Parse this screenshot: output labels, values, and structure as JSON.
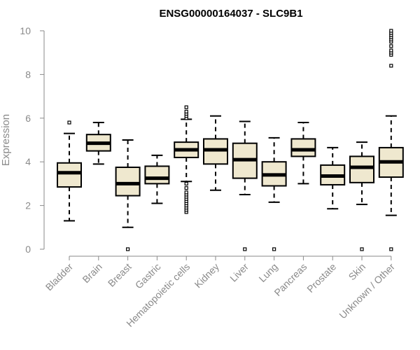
{
  "chart_data": {
    "type": "box",
    "title": "ENSG00000164037 - SLC9B1",
    "xlabel": "",
    "ylabel": "Expression",
    "ylim": [
      0,
      10
    ],
    "yticks": [
      0,
      2,
      4,
      6,
      8,
      10
    ],
    "grid": false,
    "box_color": "#efe8cf",
    "categories": [
      "Bladder",
      "Brain",
      "Breast",
      "Gastric",
      "Hematopoietic cells",
      "Kidney",
      "Liver",
      "Lung",
      "Pancreas",
      "Prostate",
      "Skin",
      "Unknown / Other"
    ],
    "series": [
      {
        "values": [
          {
            "whisker_low": 1.3,
            "q1": 2.85,
            "median": 3.5,
            "q3": 3.95,
            "whisker_high": 5.3,
            "outliers": [
              5.8
            ]
          },
          {
            "whisker_low": 3.9,
            "q1": 4.5,
            "median": 4.85,
            "q3": 5.25,
            "whisker_high": 5.8,
            "outliers": []
          },
          {
            "whisker_low": 1.0,
            "q1": 2.45,
            "median": 3.0,
            "q3": 3.75,
            "whisker_high": 5.0,
            "outliers": [
              0.0
            ]
          },
          {
            "whisker_low": 2.1,
            "q1": 3.0,
            "median": 3.25,
            "q3": 3.8,
            "whisker_high": 4.3,
            "outliers": []
          },
          {
            "whisker_low": 3.1,
            "q1": 4.2,
            "median": 4.55,
            "q3": 4.9,
            "whisker_high": 5.95,
            "outliers": [
              1.7,
              1.8,
              1.9,
              2.0,
              2.1,
              2.2,
              2.3,
              2.4,
              2.5,
              2.6,
              2.8,
              3.0,
              6.0,
              6.1,
              6.2,
              6.3,
              6.5
            ]
          },
          {
            "whisker_low": 2.7,
            "q1": 3.9,
            "median": 4.55,
            "q3": 5.05,
            "whisker_high": 6.1,
            "outliers": []
          },
          {
            "whisker_low": 2.5,
            "q1": 3.25,
            "median": 4.1,
            "q3": 4.85,
            "whisker_high": 5.85,
            "outliers": [
              0.0
            ]
          },
          {
            "whisker_low": 2.15,
            "q1": 2.9,
            "median": 3.4,
            "q3": 4.0,
            "whisker_high": 5.1,
            "outliers": [
              0.0
            ]
          },
          {
            "whisker_low": 3.0,
            "q1": 4.25,
            "median": 4.55,
            "q3": 5.05,
            "whisker_high": 5.8,
            "outliers": []
          },
          {
            "whisker_low": 1.85,
            "q1": 2.95,
            "median": 3.35,
            "q3": 3.85,
            "whisker_high": 4.65,
            "outliers": []
          },
          {
            "whisker_low": 2.05,
            "q1": 3.05,
            "median": 3.75,
            "q3": 4.25,
            "whisker_high": 4.9,
            "outliers": [
              0.0
            ]
          },
          {
            "whisker_low": 1.55,
            "q1": 3.3,
            "median": 4.0,
            "q3": 4.65,
            "whisker_high": 6.1,
            "outliers": [
              0.0,
              8.4,
              8.9,
              9.0,
              9.1,
              9.3,
              9.5,
              9.6,
              9.7,
              9.8,
              9.9,
              10.0
            ]
          }
        ]
      }
    ]
  }
}
